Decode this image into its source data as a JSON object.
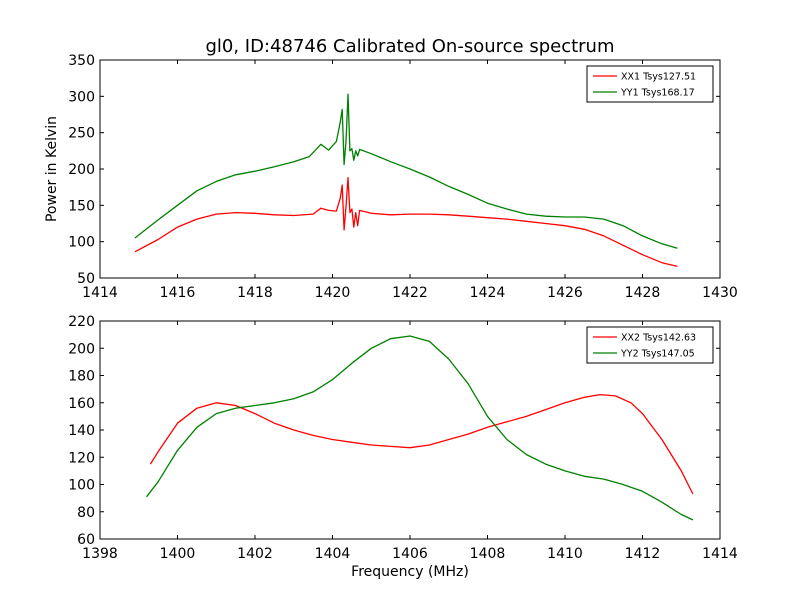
{
  "figure": {
    "title": "gl0, ID:48746 Calibrated On-source spectrum"
  },
  "chart_data": [
    {
      "type": "line",
      "id": "top",
      "title": "gl0, ID:48746 Calibrated On-source spectrum",
      "xlabel": "",
      "ylabel": "Power in Kelvin",
      "xlim": [
        1414,
        1430
      ],
      "ylim": [
        50,
        350
      ],
      "xticks": [
        1414,
        1416,
        1418,
        1420,
        1422,
        1424,
        1426,
        1428,
        1430
      ],
      "yticks": [
        50,
        100,
        150,
        200,
        250,
        300,
        350
      ],
      "grid": false,
      "legend_position": "top-right",
      "series": [
        {
          "name": "XX1 Tsys127.51",
          "color": "#ff0000",
          "x": [
            1414.9,
            1415.5,
            1416.0,
            1416.5,
            1417.0,
            1417.5,
            1418.0,
            1418.5,
            1419.0,
            1419.5,
            1419.7,
            1419.9,
            1420.1,
            1420.2,
            1420.25,
            1420.3,
            1420.35,
            1420.4,
            1420.45,
            1420.5,
            1420.55,
            1420.6,
            1420.65,
            1420.7,
            1421.0,
            1421.5,
            1422.0,
            1422.5,
            1423.0,
            1423.5,
            1424.0,
            1424.5,
            1425.0,
            1425.5,
            1426.0,
            1426.5,
            1427.0,
            1427.5,
            1428.0,
            1428.5,
            1428.9
          ],
          "y": [
            86,
            103,
            120,
            131,
            138,
            140,
            139,
            137,
            136,
            138,
            146,
            143,
            142,
            160,
            178,
            116,
            150,
            188,
            140,
            145,
            120,
            140,
            122,
            143,
            139,
            137,
            138,
            138,
            137,
            135,
            133,
            131,
            128,
            125,
            122,
            117,
            108,
            95,
            82,
            71,
            66
          ]
        },
        {
          "name": "YY1 Tsys168.17",
          "color": "#008000",
          "x": [
            1414.9,
            1415.5,
            1416.0,
            1416.5,
            1417.0,
            1417.5,
            1418.0,
            1418.5,
            1419.0,
            1419.4,
            1419.7,
            1419.9,
            1420.1,
            1420.2,
            1420.25,
            1420.3,
            1420.35,
            1420.4,
            1420.45,
            1420.5,
            1420.55,
            1420.6,
            1420.65,
            1420.7,
            1421.0,
            1421.5,
            1422.0,
            1422.5,
            1423.0,
            1423.5,
            1424.0,
            1424.5,
            1425.0,
            1425.5,
            1426.0,
            1426.5,
            1427.0,
            1427.5,
            1428.0,
            1428.5,
            1428.9
          ],
          "y": [
            105,
            130,
            150,
            170,
            183,
            192,
            197,
            203,
            210,
            217,
            234,
            226,
            238,
            265,
            282,
            206,
            240,
            303,
            225,
            228,
            212,
            225,
            218,
            227,
            221,
            210,
            200,
            189,
            176,
            165,
            153,
            145,
            138,
            135,
            134,
            134,
            131,
            122,
            108,
            97,
            91
          ]
        }
      ]
    },
    {
      "type": "line",
      "id": "bottom",
      "title": "",
      "xlabel": "Frequency (MHz)",
      "ylabel": "",
      "xlim": [
        1398,
        1414
      ],
      "ylim": [
        60,
        220
      ],
      "xticks": [
        1398,
        1400,
        1402,
        1404,
        1406,
        1408,
        1410,
        1412,
        1414
      ],
      "yticks": [
        60,
        80,
        100,
        120,
        140,
        160,
        180,
        200,
        220
      ],
      "grid": false,
      "legend_position": "top-right",
      "series": [
        {
          "name": "XX2 Tsys142.63",
          "color": "#ff0000",
          "x": [
            1399.3,
            1399.5,
            1400.0,
            1400.5,
            1401.0,
            1401.5,
            1402.0,
            1402.5,
            1403.0,
            1403.5,
            1404.0,
            1404.5,
            1405.0,
            1405.5,
            1406.0,
            1406.5,
            1407.0,
            1407.5,
            1408.0,
            1408.5,
            1409.0,
            1409.5,
            1410.0,
            1410.5,
            1410.9,
            1411.3,
            1411.7,
            1412.0,
            1412.5,
            1413.0,
            1413.3
          ],
          "y": [
            115,
            124,
            145,
            156,
            160,
            158,
            152,
            145,
            140,
            136,
            133,
            131,
            129,
            128,
            127,
            129,
            133,
            137,
            142,
            146,
            150,
            155,
            160,
            164,
            166,
            165,
            160,
            152,
            133,
            110,
            93
          ]
        },
        {
          "name": "YY2 Tsys147.05",
          "color": "#008000",
          "x": [
            1399.2,
            1399.5,
            1400.0,
            1400.5,
            1401.0,
            1401.5,
            1402.0,
            1402.5,
            1403.0,
            1403.5,
            1404.0,
            1404.5,
            1405.0,
            1405.5,
            1406.0,
            1406.5,
            1407.0,
            1407.5,
            1408.0,
            1408.5,
            1409.0,
            1409.5,
            1410.0,
            1410.5,
            1411.0,
            1411.5,
            1412.0,
            1412.5,
            1413.0,
            1413.3
          ],
          "y": [
            91,
            102,
            125,
            142,
            152,
            156,
            158,
            160,
            163,
            168,
            177,
            189,
            200,
            207,
            209,
            205,
            192,
            174,
            150,
            133,
            122,
            115,
            110,
            106,
            104,
            100,
            95,
            87,
            78,
            74
          ]
        }
      ]
    }
  ]
}
